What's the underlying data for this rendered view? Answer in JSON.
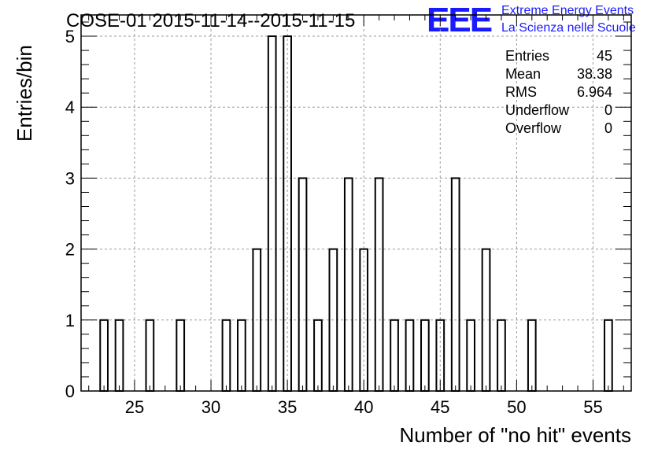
{
  "chart_data": {
    "type": "bar",
    "title": "COSE-01 2015-11-14--2015-11-15",
    "xlabel": "Number of \"no hit\" events",
    "ylabel": "Entries/bin",
    "xlim": [
      21.5,
      57.5
    ],
    "ylim": [
      0,
      5.3
    ],
    "x_ticks": [
      25,
      30,
      35,
      40,
      45,
      50,
      55
    ],
    "y_ticks": [
      0,
      1,
      2,
      3,
      4,
      5
    ],
    "grid": true,
    "bin_width": 0.5,
    "bins": [
      {
        "x": 23,
        "value": 1
      },
      {
        "x": 24,
        "value": 1
      },
      {
        "x": 26,
        "value": 1
      },
      {
        "x": 28,
        "value": 1
      },
      {
        "x": 31,
        "value": 1
      },
      {
        "x": 32,
        "value": 1
      },
      {
        "x": 33,
        "value": 2
      },
      {
        "x": 34,
        "value": 5
      },
      {
        "x": 35,
        "value": 5
      },
      {
        "x": 36,
        "value": 3
      },
      {
        "x": 37,
        "value": 1
      },
      {
        "x": 38,
        "value": 2
      },
      {
        "x": 39,
        "value": 3
      },
      {
        "x": 40,
        "value": 2
      },
      {
        "x": 41,
        "value": 3
      },
      {
        "x": 42,
        "value": 1
      },
      {
        "x": 43,
        "value": 1
      },
      {
        "x": 44,
        "value": 1
      },
      {
        "x": 45,
        "value": 1
      },
      {
        "x": 46,
        "value": 3
      },
      {
        "x": 47,
        "value": 1
      },
      {
        "x": 48,
        "value": 2
      },
      {
        "x": 49,
        "value": 1
      },
      {
        "x": 51,
        "value": 1
      },
      {
        "x": 56,
        "value": 1
      }
    ],
    "stats": [
      {
        "label": "Entries",
        "value": "45"
      },
      {
        "label": "Mean",
        "value": "38.38"
      },
      {
        "label": "RMS",
        "value": "6.964"
      },
      {
        "label": "Underflow",
        "value": "0"
      },
      {
        "label": "Overflow",
        "value": "0"
      }
    ]
  },
  "logo": {
    "mark": "EEE",
    "line1": "Extreme Energy Events",
    "line2": "La Scienza nelle Scuole",
    "color": "#1a1aff"
  }
}
